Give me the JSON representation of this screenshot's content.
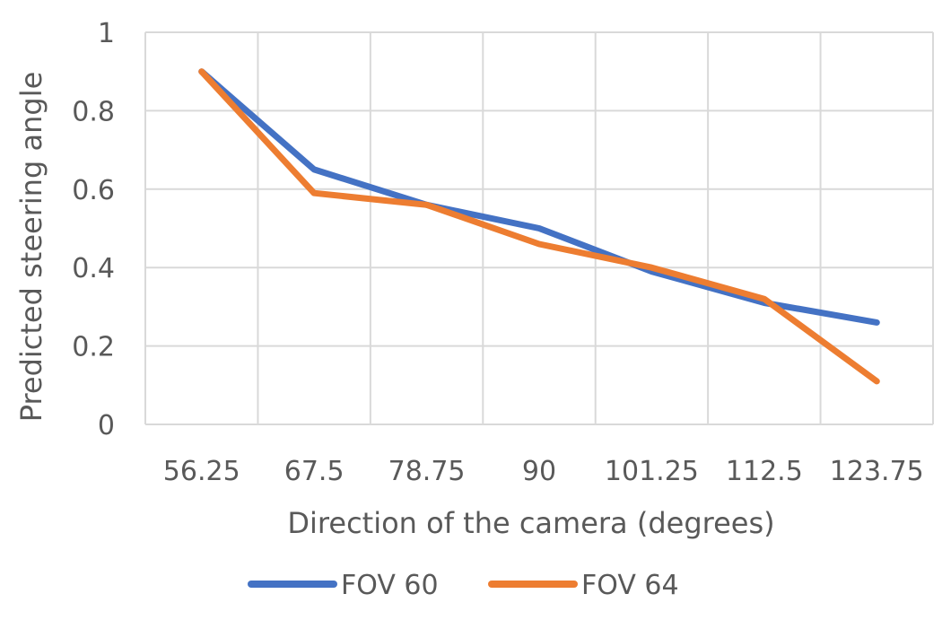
{
  "chart_data": {
    "type": "line",
    "categories": [
      "56.25",
      "67.5",
      "78.75",
      "90",
      "101.25",
      "112.5",
      "123.75"
    ],
    "series": [
      {
        "name": "FOV 60",
        "color": "#4472c4",
        "values": [
          0.9,
          0.65,
          0.56,
          0.5,
          0.39,
          0.31,
          0.26
        ]
      },
      {
        "name": "FOV 64",
        "color": "#ed7d31",
        "values": [
          0.9,
          0.59,
          0.56,
          0.46,
          0.4,
          0.32,
          0.11
        ]
      }
    ],
    "xlabel": "Direction of the camera (degrees)",
    "ylabel": "Predicted steering angle",
    "ylim": [
      0,
      1
    ],
    "yticks": [
      "0",
      "0.2",
      "0.4",
      "0.6",
      "0.8",
      "1"
    ],
    "grid": true,
    "legend": "bottom"
  }
}
